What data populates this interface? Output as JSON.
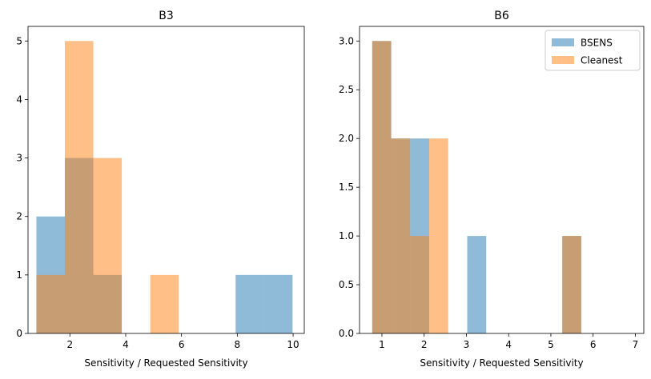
{
  "chart_data": [
    {
      "type": "bar",
      "subtype": "histogram-overlay",
      "title": "B3",
      "xlabel": "Sensitivity / Requested Sensitivity",
      "ylabel": "",
      "xlim": [
        0.5,
        10.4
      ],
      "ylim": [
        0,
        5.25
      ],
      "xticks": [
        2,
        4,
        6,
        8,
        10
      ],
      "yticks": [
        0,
        1,
        2,
        3,
        4,
        5
      ],
      "tick_labels_x": [
        "2",
        "4",
        "6",
        "8",
        "10"
      ],
      "tick_labels_y": [
        "0",
        "1",
        "2",
        "3",
        "4",
        "5"
      ],
      "grid": false,
      "series": [
        {
          "name": "BSENS",
          "color": "#1f77b4",
          "alpha": 0.5,
          "bins": [
            {
              "x0": 0.8,
              "x1": 1.82,
              "count": 2
            },
            {
              "x0": 1.82,
              "x1": 2.84,
              "count": 3
            },
            {
              "x0": 2.84,
              "x1": 3.86,
              "count": 1
            },
            {
              "x0": 7.94,
              "x1": 8.96,
              "count": 1
            },
            {
              "x0": 8.96,
              "x1": 9.98,
              "count": 1
            }
          ]
        },
        {
          "name": "Cleanest",
          "color": "#ff7f0e",
          "alpha": 0.5,
          "bins": [
            {
              "x0": 0.8,
              "x1": 1.82,
              "count": 1
            },
            {
              "x0": 1.82,
              "x1": 2.84,
              "count": 5
            },
            {
              "x0": 2.84,
              "x1": 3.86,
              "count": 3
            },
            {
              "x0": 4.88,
              "x1": 5.9,
              "count": 1
            }
          ]
        }
      ]
    },
    {
      "type": "bar",
      "subtype": "histogram-overlay",
      "title": "B6",
      "xlabel": "Sensitivity / Requested Sensitivity",
      "ylabel": "",
      "xlim": [
        0.47,
        7.2
      ],
      "ylim": [
        0,
        3.15
      ],
      "xticks": [
        1,
        2,
        3,
        4,
        5,
        6,
        7
      ],
      "yticks": [
        0,
        0.5,
        1,
        1.5,
        2,
        2.5,
        3
      ],
      "tick_labels_x": [
        "1",
        "2",
        "3",
        "4",
        "5",
        "6",
        "7"
      ],
      "tick_labels_y": [
        "0.0",
        "0.5",
        "1.0",
        "1.5",
        "2.0",
        "2.5",
        "3.0"
      ],
      "grid": false,
      "legend": {
        "position": "top-right",
        "entries": [
          "BSENS",
          "Cleanest"
        ]
      },
      "series": [
        {
          "name": "BSENS",
          "color": "#1f77b4",
          "alpha": 0.5,
          "bins": [
            {
              "x0": 0.77,
              "x1": 1.22,
              "count": 3
            },
            {
              "x0": 1.22,
              "x1": 1.67,
              "count": 2
            },
            {
              "x0": 1.67,
              "x1": 2.12,
              "count": 2
            },
            {
              "x0": 3.02,
              "x1": 3.47,
              "count": 1
            },
            {
              "x0": 5.27,
              "x1": 5.72,
              "count": 1
            }
          ]
        },
        {
          "name": "Cleanest",
          "color": "#ff7f0e",
          "alpha": 0.5,
          "bins": [
            {
              "x0": 0.77,
              "x1": 1.22,
              "count": 3
            },
            {
              "x0": 1.22,
              "x1": 1.67,
              "count": 2
            },
            {
              "x0": 1.67,
              "x1": 2.12,
              "count": 1
            },
            {
              "x0": 2.12,
              "x1": 2.57,
              "count": 2
            },
            {
              "x0": 5.27,
              "x1": 5.72,
              "count": 1
            }
          ]
        }
      ]
    }
  ]
}
